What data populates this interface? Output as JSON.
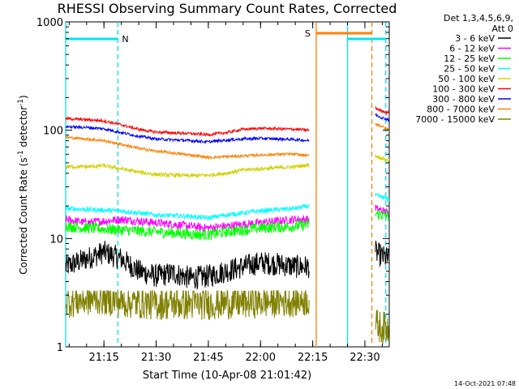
{
  "chart_data": {
    "type": "line",
    "title": "RHESSI Observing Summary Count Rates, Corrected",
    "xlabel": "Start Time (10-Apr-08 21:01:42)",
    "ylabel_main": "Corrected Count Rate (s",
    "ylabel_sup1": "-1",
    "ylabel_mid": " detector",
    "ylabel_sup2": "-1",
    "ylabel_end": ")",
    "xlim": [
      "21:04",
      "22:37"
    ],
    "ylim": [
      1,
      1000
    ],
    "yscale": "log",
    "xticks": [
      "21:15",
      "21:30",
      "21:45",
      "22:00",
      "22:15",
      "22:30"
    ],
    "yticks": [
      "1",
      "10",
      "100",
      "1000"
    ],
    "detector_info": [
      "Det 1,3,4,5,6,9,",
      "Att 0"
    ],
    "footer_date": "14-Oct-2021 07:48",
    "flags": [
      {
        "label": "N",
        "from": "21:04",
        "to": "21:19",
        "color": "#00e5ee",
        "row": "top"
      },
      {
        "label": "S",
        "from": "22:16",
        "to": "22:32",
        "color": "#ff8000",
        "row": "upper"
      },
      {
        "label": "",
        "from": "22:25",
        "to": "22:36",
        "color": "#00e5ee",
        "row": "top"
      }
    ],
    "vlines": [
      {
        "t": "21:04",
        "color": "#00e5ee",
        "style": "solid"
      },
      {
        "t": "21:19",
        "color": "#00e5ee",
        "style": "dash"
      },
      {
        "t": "22:16",
        "color": "#ff8000",
        "style": "solid"
      },
      {
        "t": "22:25",
        "color": "#00e5ee",
        "style": "solid"
      },
      {
        "t": "22:32",
        "color": "#ff8000",
        "style": "dash"
      },
      {
        "t": "22:36",
        "color": "#00e5ee",
        "style": "dash"
      }
    ],
    "series": [
      {
        "name": "3 - 6 keV",
        "color": "#000000",
        "points1": [
          [
            "21:04",
            5.5
          ],
          [
            "21:10",
            6.5
          ],
          [
            "21:15",
            7.5
          ],
          [
            "21:20",
            6.5
          ],
          [
            "21:25",
            5.0
          ],
          [
            "21:30",
            4.5
          ],
          [
            "21:35",
            4.8
          ],
          [
            "21:40",
            4.3
          ],
          [
            "21:45",
            4.5
          ],
          [
            "21:50",
            5.0
          ],
          [
            "21:55",
            5.5
          ],
          [
            "22:00",
            6.0
          ],
          [
            "22:05",
            5.8
          ],
          [
            "22:10",
            5.5
          ],
          [
            "22:14",
            5.5
          ]
        ],
        "points2": [
          [
            "22:33",
            7.5
          ],
          [
            "22:35",
            6.8
          ],
          [
            "22:37",
            6.5
          ]
        ],
        "noise": 0.25
      },
      {
        "name": "6 - 12 keV",
        "color": "#ff00ff",
        "points1": [
          [
            "21:04",
            15
          ],
          [
            "21:10",
            14
          ],
          [
            "21:20",
            15
          ],
          [
            "21:30",
            14
          ],
          [
            "21:40",
            13
          ],
          [
            "21:45",
            12.5
          ],
          [
            "21:50",
            13
          ],
          [
            "22:00",
            14
          ],
          [
            "22:10",
            15
          ],
          [
            "22:14",
            15
          ]
        ],
        "points2": [
          [
            "22:33",
            19
          ],
          [
            "22:35",
            18
          ],
          [
            "22:37",
            17
          ]
        ],
        "noise": 0.09
      },
      {
        "name": "12 - 25 keV",
        "color": "#00ff00",
        "points1": [
          [
            "21:04",
            13
          ],
          [
            "21:10",
            12.5
          ],
          [
            "21:20",
            12
          ],
          [
            "21:30",
            11.5
          ],
          [
            "21:40",
            11
          ],
          [
            "21:45",
            10.8
          ],
          [
            "21:50",
            11.5
          ],
          [
            "22:00",
            12.5
          ],
          [
            "22:10",
            13
          ],
          [
            "22:14",
            13.5
          ]
        ],
        "points2": [
          [
            "22:33",
            17
          ],
          [
            "22:35",
            16.5
          ],
          [
            "22:37",
            16
          ]
        ],
        "noise": 0.12
      },
      {
        "name": "25 - 50 keV",
        "color": "#00ffff",
        "points1": [
          [
            "21:04",
            19
          ],
          [
            "21:10",
            18.5
          ],
          [
            "21:20",
            18
          ],
          [
            "21:30",
            16.5
          ],
          [
            "21:40",
            16
          ],
          [
            "21:45",
            15.5
          ],
          [
            "21:50",
            16.5
          ],
          [
            "22:00",
            18
          ],
          [
            "22:10",
            19
          ],
          [
            "22:14",
            20
          ]
        ],
        "points2": [
          [
            "22:33",
            25
          ],
          [
            "22:35",
            24
          ],
          [
            "22:37",
            23
          ]
        ],
        "noise": 0.05
      },
      {
        "name": "50 - 100 keV",
        "color": "#d0d000",
        "points1": [
          [
            "21:04",
            46
          ],
          [
            "21:10",
            46
          ],
          [
            "21:15",
            47
          ],
          [
            "21:20",
            44
          ],
          [
            "21:25",
            41
          ],
          [
            "21:30",
            39
          ],
          [
            "21:40",
            38
          ],
          [
            "21:45",
            38.5
          ],
          [
            "21:50",
            40
          ],
          [
            "21:55",
            43
          ],
          [
            "22:00",
            44
          ],
          [
            "22:05",
            45
          ],
          [
            "22:10",
            46
          ],
          [
            "22:14",
            48
          ]
        ],
        "points2": [
          [
            "22:33",
            58
          ],
          [
            "22:35",
            55
          ],
          [
            "22:37",
            52
          ]
        ],
        "noise": 0.04
      },
      {
        "name": "100 - 300 keV",
        "color": "#ff0000",
        "points1": [
          [
            "21:04",
            128
          ],
          [
            "21:10",
            125
          ],
          [
            "21:15",
            122
          ],
          [
            "21:20",
            112
          ],
          [
            "21:25",
            102
          ],
          [
            "21:30",
            96
          ],
          [
            "21:40",
            93
          ],
          [
            "21:45",
            91
          ],
          [
            "21:50",
            95
          ],
          [
            "21:55",
            102
          ],
          [
            "22:00",
            104
          ],
          [
            "22:05",
            103
          ],
          [
            "22:10",
            102
          ],
          [
            "22:14",
            100
          ]
        ],
        "points2": [
          [
            "22:33",
            160
          ],
          [
            "22:35",
            150
          ],
          [
            "22:37",
            145
          ]
        ],
        "noise": 0.03
      },
      {
        "name": "300 - 800 keV",
        "color": "#0000ff",
        "points1": [
          [
            "21:04",
            108
          ],
          [
            "21:10",
            106
          ],
          [
            "21:15",
            103
          ],
          [
            "21:20",
            95
          ],
          [
            "21:25",
            88
          ],
          [
            "21:30",
            83
          ],
          [
            "21:40",
            80
          ],
          [
            "21:45",
            78
          ],
          [
            "21:50",
            81
          ],
          [
            "21:55",
            83
          ],
          [
            "22:00",
            84
          ],
          [
            "22:05",
            83
          ],
          [
            "22:10",
            82
          ],
          [
            "22:14",
            80
          ]
        ],
        "points2": [
          [
            "22:33",
            140
          ],
          [
            "22:35",
            130
          ],
          [
            "22:37",
            125
          ]
        ],
        "noise": 0.03
      },
      {
        "name": "800 - 7000 keV",
        "color": "#ff8000",
        "points1": [
          [
            "21:04",
            86
          ],
          [
            "21:10",
            83
          ],
          [
            "21:15",
            80
          ],
          [
            "21:20",
            74
          ],
          [
            "21:25",
            68
          ],
          [
            "21:30",
            64
          ],
          [
            "21:40",
            59
          ],
          [
            "21:45",
            56
          ],
          [
            "21:50",
            57
          ],
          [
            "21:55",
            58
          ],
          [
            "22:00",
            59
          ],
          [
            "22:05",
            60
          ],
          [
            "22:10",
            60
          ],
          [
            "22:14",
            58
          ]
        ],
        "points2": [
          [
            "22:33",
            115
          ],
          [
            "22:35",
            108
          ],
          [
            "22:37",
            100
          ]
        ],
        "noise": 0.03
      },
      {
        "name": "7000 - 15000 keV",
        "color": "#808000",
        "points1": [
          [
            "21:04",
            2.6
          ],
          [
            "21:14",
            2.8
          ],
          [
            "21:20",
            2.6
          ],
          [
            "21:30",
            2.5
          ],
          [
            "21:45",
            2.5
          ],
          [
            "22:00",
            2.6
          ],
          [
            "22:14",
            2.7
          ]
        ],
        "points2": [
          [
            "22:33",
            1.6
          ],
          [
            "22:35",
            1.5
          ],
          [
            "22:37",
            1.5
          ]
        ],
        "noise": 0.35
      }
    ]
  }
}
